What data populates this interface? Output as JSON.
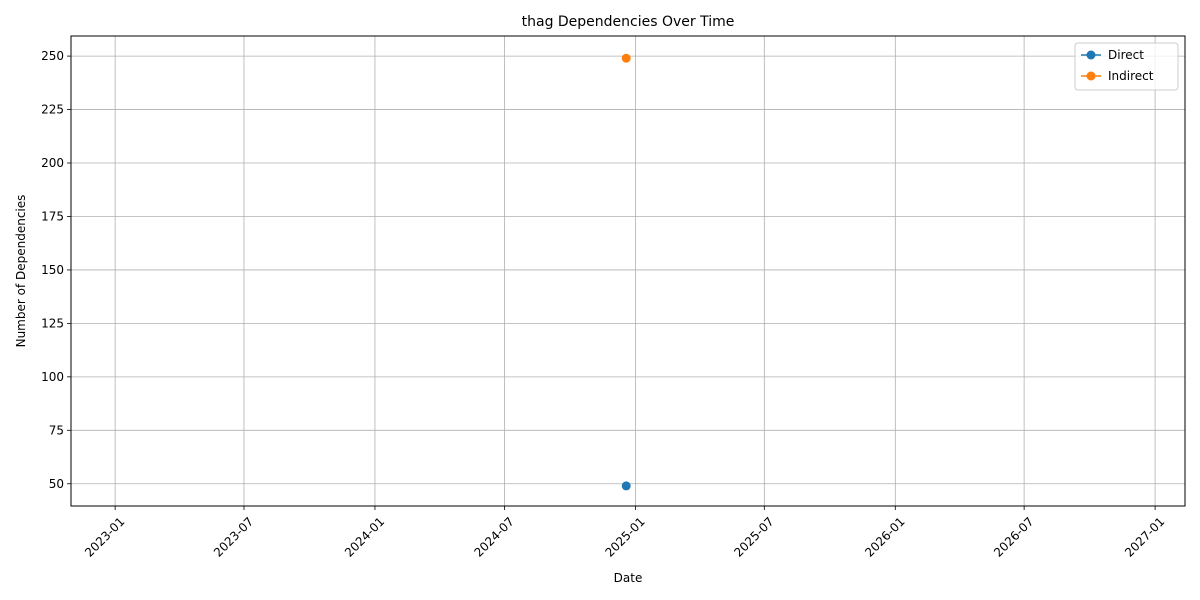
{
  "chart_data": {
    "type": "line",
    "title": "thag Dependencies Over Time",
    "xlabel": "Date",
    "ylabel": "Number of Dependencies",
    "x_type": "date",
    "xlim": [
      "2022-10-31",
      "2027-02-12"
    ],
    "ylim": [
      39.6,
      259.4
    ],
    "x_ticks": [
      "2023-01",
      "2023-07",
      "2024-01",
      "2024-07",
      "2025-01",
      "2025-07",
      "2026-01",
      "2026-07",
      "2027-01"
    ],
    "y_ticks": [
      50,
      75,
      100,
      125,
      150,
      175,
      200,
      225,
      250
    ],
    "grid": true,
    "legend_position": "top-right",
    "series": [
      {
        "name": "Direct",
        "color": "#1f77b4",
        "marker": "circle",
        "x": [
          "2024-12-19"
        ],
        "y": [
          49
        ]
      },
      {
        "name": "Indirect",
        "color": "#ff7f0e",
        "marker": "circle",
        "x": [
          "2024-12-19"
        ],
        "y": [
          249
        ]
      }
    ]
  }
}
